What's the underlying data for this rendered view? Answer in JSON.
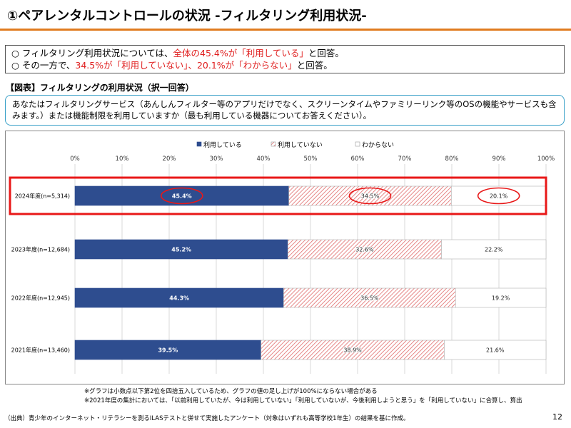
{
  "page": {
    "title": "①ペアレンタルコントロールの状況 -フィルタリング利用状況-",
    "page_number": "12"
  },
  "summary": {
    "line1": {
      "prefix": "○ フィルタリング利用状況については、",
      "highlight": "全体の45.4%が「利用している」",
      "suffix": "と回答。"
    },
    "line2": {
      "prefix": "○ その一方で、",
      "highlight": "34.5%が「利用していない」、20.1%が「わからない」",
      "suffix": "と回答。"
    }
  },
  "figure": {
    "label": "【図表】フィルタリングの利用状況（択一回答）",
    "question": "あなたはフィルタリングサービス（あんしんフィルター等のアプリだけでなく、スクリーンタイムやファミリーリンク等のOSの機能やサービスも含みます。）または機能制限を利用していますか（最も利用している機器についてお答えください）。"
  },
  "chart_data": {
    "type": "bar",
    "orientation": "horizontal",
    "stacked": true,
    "percent_scale": true,
    "categories": [
      "2024年度(n=5,314)",
      "2023年度(n=12,684)",
      "2022年度(n=12,945)",
      "2021年度(n=13,460)"
    ],
    "series": [
      {
        "name": "利用している",
        "values": [
          45.4,
          45.2,
          44.3,
          39.5
        ],
        "labels": [
          "45.4%",
          "45.2%",
          "44.3%",
          "39.5%"
        ],
        "color": "#2e4d8f"
      },
      {
        "name": "利用していない",
        "values": [
          34.5,
          32.6,
          36.5,
          38.9
        ],
        "labels": [
          "34.5%",
          "32.6%",
          "36.5%",
          "38.9%"
        ],
        "color": "#e06060"
      },
      {
        "name": "わからない",
        "values": [
          20.1,
          22.2,
          19.2,
          21.6
        ],
        "labels": [
          "20.1%",
          "22.2%",
          "19.2%",
          "21.6%"
        ],
        "color": "#ffffff"
      }
    ],
    "x_ticks": [
      "0%",
      "10%",
      "20%",
      "30%",
      "40%",
      "50%",
      "60%",
      "70%",
      "80%",
      "90%",
      "100%"
    ],
    "xlim": [
      0,
      100
    ],
    "grid": true,
    "legend_position": "top",
    "highlight_row": 0
  },
  "notes": {
    "note1": "※グラフは小数点以下第2位を四捨五入しているため、グラフの値の足し上げが100%にならない場合がある",
    "note2": "※2021年度の集計においては、「以前利用していたが、今は利用していない」「利用していないが、今後利用しようと思う」を「利用していない」に合算し、算出"
  },
  "source": "（出典）青少年のインターネット・リテラシーを測るILASテストと併せて実施したアンケート（対象はいずれも高等学校1年生）の結果を基に作成。"
}
